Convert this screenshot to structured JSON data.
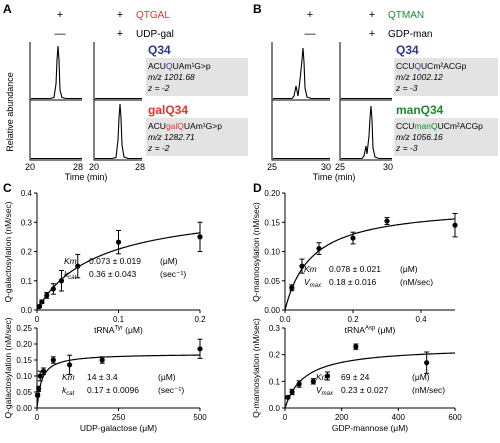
{
  "panels": {
    "A": {
      "letter": "A",
      "row1": {
        "label": "QTGAL",
        "color": "#e8322e",
        "signs": [
          "+",
          "+"
        ]
      },
      "row2": {
        "label": "UDP-gal",
        "color": "#000000",
        "signs": [
          "—",
          "+"
        ]
      },
      "ylabel": "Relative abundance",
      "xlabel": "Time (min)",
      "xticks_left": [
        "20",
        "28"
      ],
      "xticks_right": [
        "20",
        "28"
      ],
      "top": {
        "name": "Q34",
        "name_color": "#2b3990",
        "seq_pre": "ACU",
        "seq_mod": "Q",
        "seq_post": "UAm¹G>p",
        "mod_color": "#2b3990",
        "mz": "m/z 1201.68",
        "z": "z = -2"
      },
      "bottom": {
        "name": "galQ34",
        "name_color": "#e8322e",
        "seq_pre": "ACU",
        "seq_mod": "galQ",
        "seq_post": "UAm¹G>p",
        "mod_color": "#e8322e",
        "mz": "m/z 1282.71",
        "z": "z = -2"
      }
    },
    "B": {
      "letter": "B",
      "row1": {
        "label": "QTMAN",
        "color": "#1a8a2e",
        "signs": [
          "+",
          "+"
        ]
      },
      "row2": {
        "label": "GDP-man",
        "color": "#000000",
        "signs": [
          "—",
          "+"
        ]
      },
      "xlabel": "Time (min)",
      "xticks_left": [
        "25",
        "30"
      ],
      "xticks_right": [
        "25",
        "30"
      ],
      "top": {
        "name": "Q34",
        "name_color": "#2b3990",
        "seq_pre": "CCU",
        "seq_mod": "Q",
        "seq_post": "UCm²ACGp",
        "mod_color": "#2b3990",
        "mz": "m/z 1002.12",
        "z": "z = -3"
      },
      "bottom": {
        "name": "manQ34",
        "name_color": "#1a8a2e",
        "seq_pre": "CCU",
        "seq_mod": "manQ",
        "seq_post": "UCm²ACGp",
        "mod_color": "#1a8a2e",
        "mz": "m/z 1056.16",
        "z": "z = -3"
      }
    },
    "C": {
      "letter": "C"
    },
    "D": {
      "letter": "D"
    }
  },
  "chart_data": [
    {
      "id": "C1",
      "type": "scatter",
      "xlabel": "tRNA",
      "xlabel_sup": "Tyr",
      "xlabel_unit": " (μM)",
      "ylabel": "Q-galactosylation (nM/sec)",
      "xlim": [
        0,
        0.2
      ],
      "ylim": [
        0,
        0.4
      ],
      "xticks": [
        0,
        0.1,
        0.2
      ],
      "xtick_labels": [
        "0",
        "0.1",
        "0.2"
      ],
      "yticks": [
        0,
        0.1,
        0.2,
        0.3,
        0.4
      ],
      "ytick_labels": [
        "0.0",
        "0.1",
        "0.2",
        "0.3",
        "0.4"
      ],
      "x": [
        0.003,
        0.006,
        0.012,
        0.02,
        0.03,
        0.05,
        0.1,
        0.2
      ],
      "y": [
        0.012,
        0.028,
        0.05,
        0.072,
        0.1,
        0.15,
        0.232,
        0.25
      ],
      "err": [
        0.004,
        0.006,
        0.01,
        0.018,
        0.035,
        0.04,
        0.04,
        0.05
      ],
      "fit": {
        "model": "Michaelis-Menten",
        "Km": 0.073,
        "Vmax": 0.36
      },
      "params": [
        {
          "name": "Km",
          "sub": "",
          "value": "0.073 ± 0.019",
          "unit": "(μM)"
        },
        {
          "name": "k",
          "sub": "cat",
          "value": "0.36 ± 0.043",
          "unit": "(sec⁻¹)"
        }
      ]
    },
    {
      "id": "C2",
      "type": "scatter",
      "xlabel": "UDP-galactose (μM)",
      "xlabel_sup": "",
      "xlabel_unit": "",
      "ylabel": "Q-galactosylation (nM/sec)",
      "xlim": [
        0,
        500
      ],
      "ylim": [
        0,
        0.25
      ],
      "xticks": [
        0,
        250,
        500
      ],
      "xtick_labels": [
        "0",
        "250",
        "500"
      ],
      "yticks": [
        0,
        0.05,
        0.1,
        0.15,
        0.2,
        0.25
      ],
      "ytick_labels": [
        "0.00",
        "0.05",
        "0.10",
        "0.15",
        "0.20",
        "0.25"
      ],
      "x": [
        2,
        5,
        10,
        20,
        50,
        100,
        200,
        500
      ],
      "y": [
        0.04,
        0.06,
        0.1,
        0.115,
        0.15,
        0.135,
        0.15,
        0.185
      ],
      "err": [
        0.005,
        0.008,
        0.015,
        0.01,
        0.01,
        0.03,
        0.01,
        0.03
      ],
      "fit": {
        "model": "Michaelis-Menten",
        "Km": 14,
        "Vmax": 0.17
      },
      "params": [
        {
          "name": "Km",
          "sub": "",
          "value": "14 ± 3.4",
          "unit": "(μM)"
        },
        {
          "name": "k",
          "sub": "cat",
          "value": "0.17 ± 0.0096",
          "unit": "(sec⁻¹)"
        }
      ]
    },
    {
      "id": "D1",
      "type": "scatter",
      "xlabel": "tRNA",
      "xlabel_sup": "Asp",
      "xlabel_unit": " (μM)",
      "ylabel": "Q-mannosylation (nM/sec)",
      "xlim": [
        0,
        0.5
      ],
      "ylim": [
        0,
        0.2
      ],
      "xticks": [
        0,
        0.2,
        0.4
      ],
      "xtick_labels": [
        "0.0",
        "0.2",
        "0.4"
      ],
      "yticks": [
        0,
        0.05,
        0.1,
        0.15,
        0.2
      ],
      "ytick_labels": [
        "0.00",
        "0.05",
        "0.10",
        "0.15",
        "0.20"
      ],
      "x": [
        0.02,
        0.05,
        0.1,
        0.2,
        0.3,
        0.5
      ],
      "y": [
        0.038,
        0.075,
        0.105,
        0.123,
        0.152,
        0.145
      ],
      "err": [
        0.005,
        0.012,
        0.01,
        0.01,
        0.006,
        0.02
      ],
      "fit": {
        "model": "Michaelis-Menten",
        "Km": 0.078,
        "Vmax": 0.18
      },
      "params": [
        {
          "name": "Km",
          "sub": "",
          "value": "0.078 ± 0.021",
          "unit": "(μM)"
        },
        {
          "name": "V",
          "sub": "max",
          "value": "0.18 ± 0.016",
          "unit": "(nM/sec)"
        }
      ]
    },
    {
      "id": "D2",
      "type": "scatter",
      "xlabel": "GDP-mannose (μM)",
      "xlabel_sup": "",
      "xlabel_unit": "",
      "ylabel": "Q-mannosylation (nM/sec)",
      "xlim": [
        0,
        600
      ],
      "ylim": [
        0,
        0.3
      ],
      "xticks": [
        0,
        200,
        400,
        600
      ],
      "xtick_labels": [
        "0",
        "200",
        "400",
        "600"
      ],
      "yticks": [
        0,
        0.1,
        0.2,
        0.3
      ],
      "ytick_labels": [
        "0.0",
        "0.1",
        "0.2",
        "0.3"
      ],
      "x": [
        10,
        25,
        50,
        100,
        150,
        250,
        500
      ],
      "y": [
        0.04,
        0.06,
        0.09,
        0.1,
        0.12,
        0.23,
        0.17
      ],
      "err": [
        0.005,
        0.01,
        0.012,
        0.01,
        0.015,
        0.01,
        0.04
      ],
      "fit": {
        "model": "Michaelis-Menten",
        "Km": 69,
        "Vmax": 0.23
      },
      "params": [
        {
          "name": "Km",
          "sub": "",
          "value": "69 ± 24",
          "unit": "(μM)"
        },
        {
          "name": "V",
          "sub": "max",
          "value": "0.23 ± 0.027",
          "unit": "(nM/sec)"
        }
      ]
    }
  ]
}
